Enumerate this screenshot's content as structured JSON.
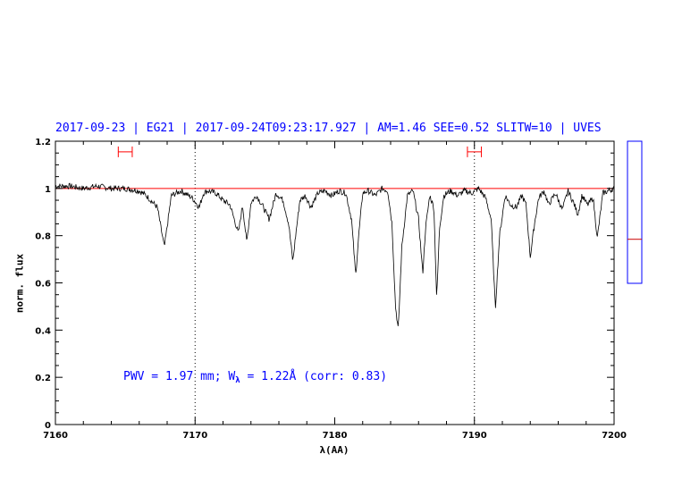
{
  "header": {
    "date": "2017-09-23",
    "target": "EG21",
    "timestamp": "2017-09-24T09:23:17.927",
    "airmass": "AM=1.46",
    "seeing": "SEE=0.52",
    "slit_width": "SLITW=10",
    "instrument": "UVES",
    "separator": " | "
  },
  "annotation": {
    "pwv_text": "PWV = 1.97 mm; W",
    "w_subscript": "λ",
    "w_text": " = 1.22Å (corr: 0.83)"
  },
  "colors": {
    "header": "#0000ff",
    "spectrum": "#000000",
    "continuum": "#ff0000",
    "range_markers": "#ff0000",
    "side_panel": "#0000ff",
    "side_marker": "#cc0000"
  },
  "chart_data": {
    "type": "line",
    "xlabel": "λ(AA)",
    "ylabel": "norm. flux",
    "xlim": [
      7160,
      7200
    ],
    "ylim": [
      0,
      1.2
    ],
    "x_ticks": [
      7160,
      7170,
      7180,
      7190,
      7200
    ],
    "y_ticks": [
      0,
      0.2,
      0.4,
      0.6,
      0.8,
      1,
      1.2
    ],
    "x_tick_labels": [
      "7160",
      "7170",
      "7180",
      "7190",
      "7200"
    ],
    "y_tick_labels": [
      "0",
      "0.2",
      "0.4",
      "0.6",
      "0.8",
      "1",
      "1.2"
    ],
    "continuum_level": 1.0,
    "vertical_dotted_lines_x": [
      7170,
      7190
    ],
    "range_markers": [
      [
        7164.5,
        7165.5
      ],
      [
        7189.5,
        7190.5
      ]
    ],
    "range_marker_y": 1.155,
    "side_panel_marker_fraction": 0.69,
    "series": [
      {
        "x": [
          7160.0,
          7161.0,
          7162.0,
          7163.0,
          7164.0,
          7165.0,
          7166.0,
          7166.5,
          7167.3,
          7167.8,
          7168.3,
          7169.0,
          7169.8,
          7170.3,
          7170.6,
          7170.9,
          7171.5,
          7172.0,
          7172.5,
          7173.1,
          7173.4,
          7173.7,
          7174.0,
          7174.4,
          7174.8,
          7175.3,
          7175.8,
          7176.3,
          7176.7,
          7177.0,
          7177.2,
          7177.5,
          7177.9,
          7178.3,
          7178.8,
          7179.3,
          7179.8,
          7180.3,
          7180.8,
          7181.2,
          7181.5,
          7181.7,
          7182.0,
          7182.4,
          7182.9,
          7183.4,
          7183.8,
          7184.1,
          7184.35,
          7184.55,
          7184.8,
          7185.2,
          7185.6,
          7186.0,
          7186.3,
          7186.5,
          7186.8,
          7187.1,
          7187.3,
          7187.5,
          7187.8,
          7188.3,
          7188.8,
          7189.3,
          7189.8,
          7190.3,
          7190.8,
          7191.2,
          7191.5,
          7191.8,
          7192.2,
          7192.6,
          7193.0,
          7193.4,
          7193.7,
          7194.0,
          7194.3,
          7194.6,
          7195.0,
          7195.3,
          7195.8,
          7196.3,
          7196.7,
          7197.1,
          7197.4,
          7197.7,
          7198.1,
          7198.5,
          7198.8,
          7199.2,
          7199.6,
          7200.0
        ],
        "y": [
          1.01,
          1.01,
          1.0,
          1.01,
          1.0,
          1.0,
          0.99,
          0.97,
          0.92,
          0.75,
          0.97,
          0.99,
          0.96,
          0.92,
          0.98,
          0.99,
          0.98,
          0.95,
          0.93,
          0.81,
          0.93,
          0.77,
          0.94,
          0.97,
          0.93,
          0.87,
          0.98,
          0.95,
          0.85,
          0.69,
          0.8,
          0.95,
          0.97,
          0.92,
          0.98,
          0.99,
          0.97,
          0.99,
          0.98,
          0.87,
          0.63,
          0.79,
          0.98,
          0.99,
          0.97,
          1.0,
          0.99,
          0.85,
          0.5,
          0.4,
          0.75,
          0.97,
          0.99,
          0.87,
          0.64,
          0.83,
          0.97,
          0.92,
          0.53,
          0.83,
          0.97,
          0.99,
          0.97,
          0.99,
          0.98,
          1.0,
          0.96,
          0.87,
          0.49,
          0.8,
          0.97,
          0.93,
          0.92,
          0.97,
          0.93,
          0.71,
          0.85,
          0.96,
          0.99,
          0.93,
          0.98,
          0.91,
          0.99,
          0.94,
          0.89,
          0.97,
          0.93,
          0.96,
          0.79,
          0.98,
          0.99,
          1.0
        ]
      }
    ]
  }
}
